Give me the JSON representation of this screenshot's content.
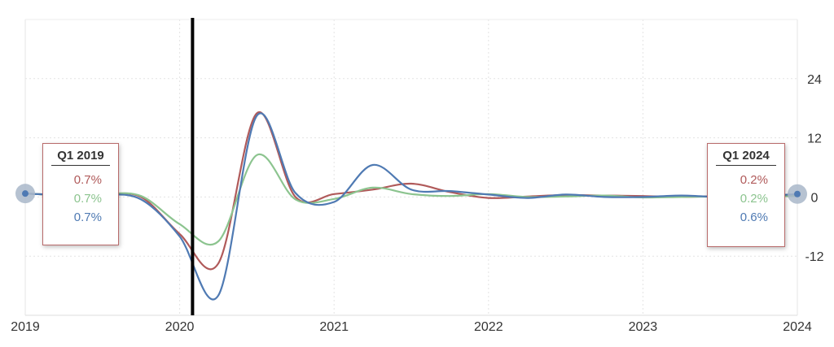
{
  "chart_data": {
    "type": "line",
    "x_ticks": [
      "2019",
      "2020",
      "2021",
      "2022",
      "2023",
      "2024"
    ],
    "y_ticks": [
      "24",
      "12",
      "0",
      "-12"
    ],
    "ylim": [
      -24,
      36
    ],
    "grid": true,
    "series": [
      {
        "color": "#b05a5a",
        "points": [
          [
            "2019-Q1",
            0.7
          ],
          [
            "2019-Q2",
            0.4
          ],
          [
            "2019-Q3",
            0.5
          ],
          [
            "2019-Q4",
            0.0
          ],
          [
            "2020-Q1",
            -7.5
          ],
          [
            "2020-Q2",
            -13.5
          ],
          [
            "2020-Q3",
            17.0
          ],
          [
            "2020-Q4",
            0.0
          ],
          [
            "2021-Q1",
            0.6
          ],
          [
            "2021-Q2",
            1.5
          ],
          [
            "2021-Q3",
            2.7
          ],
          [
            "2021-Q4",
            1.0
          ],
          [
            "2022-Q1",
            -0.2
          ],
          [
            "2022-Q2",
            0.1
          ],
          [
            "2022-Q3",
            0.4
          ],
          [
            "2022-Q4",
            0.3
          ],
          [
            "2023-Q1",
            0.2
          ],
          [
            "2023-Q2",
            0.0
          ],
          [
            "2023-Q3",
            0.2
          ],
          [
            "2023-Q4",
            0.2
          ],
          [
            "2024-Q1",
            0.2
          ]
        ]
      },
      {
        "color": "#8cc48f",
        "points": [
          [
            "2019-Q1",
            0.7
          ],
          [
            "2019-Q2",
            0.4
          ],
          [
            "2019-Q3",
            0.6
          ],
          [
            "2019-Q4",
            0.2
          ],
          [
            "2020-Q1",
            -5.5
          ],
          [
            "2020-Q2",
            -9.0
          ],
          [
            "2020-Q3",
            8.5
          ],
          [
            "2020-Q4",
            -0.5
          ],
          [
            "2021-Q1",
            -0.4
          ],
          [
            "2021-Q2",
            1.9
          ],
          [
            "2021-Q3",
            0.6
          ],
          [
            "2021-Q4",
            0.2
          ],
          [
            "2022-Q1",
            0.6
          ],
          [
            "2022-Q2",
            0.0
          ],
          [
            "2022-Q3",
            0.1
          ],
          [
            "2022-Q4",
            0.3
          ],
          [
            "2023-Q1",
            -0.1
          ],
          [
            "2023-Q2",
            0.0
          ],
          [
            "2023-Q3",
            0.1
          ],
          [
            "2023-Q4",
            0.1
          ],
          [
            "2024-Q1",
            0.2
          ]
        ]
      },
      {
        "color": "#4f7ab3",
        "points": [
          [
            "2019-Q1",
            0.7
          ],
          [
            "2019-Q2",
            0.4
          ],
          [
            "2019-Q3",
            0.5
          ],
          [
            "2019-Q4",
            -0.5
          ],
          [
            "2020-Q1",
            -8.0
          ],
          [
            "2020-Q2",
            -20.0
          ],
          [
            "2020-Q3",
            16.5
          ],
          [
            "2020-Q4",
            0.8
          ],
          [
            "2021-Q1",
            -1.0
          ],
          [
            "2021-Q2",
            6.5
          ],
          [
            "2021-Q3",
            1.5
          ],
          [
            "2021-Q4",
            1.2
          ],
          [
            "2022-Q1",
            0.5
          ],
          [
            "2022-Q2",
            -0.2
          ],
          [
            "2022-Q3",
            0.5
          ],
          [
            "2022-Q4",
            0.0
          ],
          [
            "2023-Q1",
            0.0
          ],
          [
            "2023-Q2",
            0.3
          ],
          [
            "2023-Q3",
            0.0
          ],
          [
            "2023-Q4",
            0.2
          ],
          [
            "2024-Q1",
            0.6
          ]
        ]
      }
    ],
    "vertical_marker": "2020-02",
    "tooltips": [
      {
        "side": "left",
        "title": "Q1 2019",
        "values": [
          {
            "text": "0.7%",
            "color": "#b05a5a"
          },
          {
            "text": "0.7%",
            "color": "#8cc48f"
          },
          {
            "text": "0.7%",
            "color": "#4f7ab3"
          }
        ]
      },
      {
        "side": "right",
        "title": "Q1 2024",
        "values": [
          {
            "text": "0.2%",
            "color": "#b05a5a"
          },
          {
            "text": "0.2%",
            "color": "#8cc48f"
          },
          {
            "text": "0.6%",
            "color": "#4f7ab3"
          }
        ]
      }
    ]
  }
}
